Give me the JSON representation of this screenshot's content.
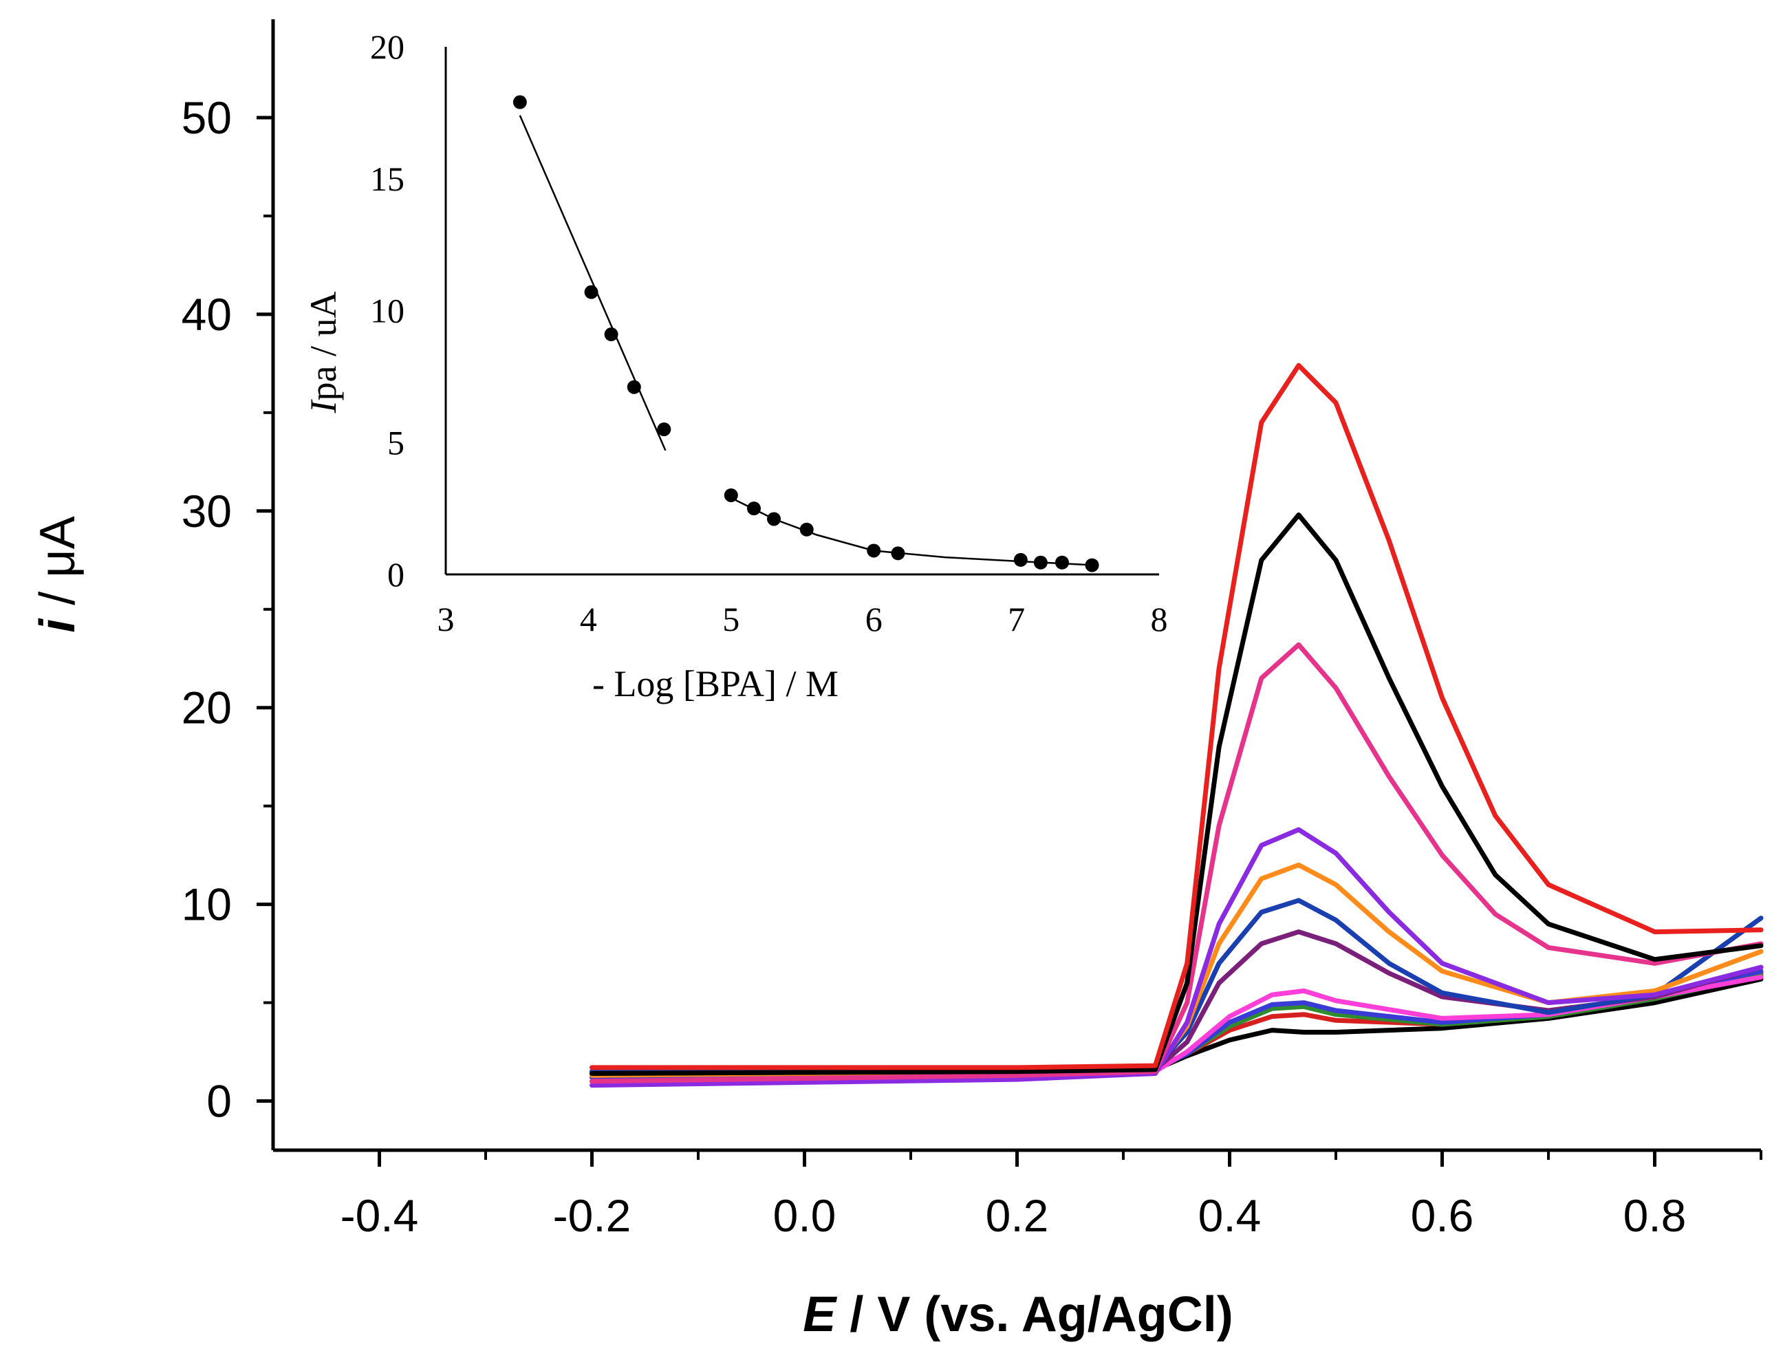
{
  "chart_data": [
    {
      "type": "line",
      "xlabel_italic": "E",
      "xlabel_rest": " / V (vs. Ag/AgCl)",
      "ylabel_italic": "i",
      "ylabel_rest": " / μA",
      "xlim": [
        -0.5,
        0.9
      ],
      "ylim": [
        -2.5,
        55
      ],
      "x_ticks": [
        "-0.4",
        "-0.2",
        "0.0",
        "0.2",
        "0.4",
        "0.6",
        "0.8"
      ],
      "y_ticks": [
        "0",
        "10",
        "20",
        "30",
        "40",
        "50"
      ],
      "series": [
        {
          "color": "#000000",
          "values": [
            [
              -0.2,
              1.4
            ],
            [
              0.2,
              1.5
            ],
            [
              0.33,
              1.6
            ],
            [
              0.36,
              2.3
            ],
            [
              0.4,
              3.1
            ],
            [
              0.44,
              3.6
            ],
            [
              0.47,
              3.5
            ],
            [
              0.5,
              3.5
            ],
            [
              0.6,
              3.7
            ],
            [
              0.7,
              4.2
            ],
            [
              0.8,
              5.0
            ],
            [
              0.9,
              6.2
            ]
          ]
        },
        {
          "color": "#d62020",
          "values": [
            [
              -0.2,
              1.5
            ],
            [
              0.2,
              1.6
            ],
            [
              0.33,
              1.7
            ],
            [
              0.36,
              2.4
            ],
            [
              0.4,
              3.6
            ],
            [
              0.44,
              4.3
            ],
            [
              0.47,
              4.4
            ],
            [
              0.5,
              4.1
            ],
            [
              0.6,
              3.9
            ],
            [
              0.7,
              4.3
            ],
            [
              0.8,
              5.2
            ],
            [
              0.9,
              6.5
            ]
          ]
        },
        {
          "color": "#2e8b2e",
          "values": [
            [
              -0.2,
              1.3
            ],
            [
              0.2,
              1.5
            ],
            [
              0.33,
              1.6
            ],
            [
              0.36,
              2.4
            ],
            [
              0.4,
              3.8
            ],
            [
              0.44,
              4.7
            ],
            [
              0.47,
              4.8
            ],
            [
              0.5,
              4.4
            ],
            [
              0.6,
              3.9
            ],
            [
              0.7,
              4.3
            ],
            [
              0.8,
              5.2
            ],
            [
              0.9,
              6.4
            ]
          ]
        },
        {
          "color": "#3a3ad6",
          "values": [
            [
              -0.2,
              1.2
            ],
            [
              0.2,
              1.4
            ],
            [
              0.33,
              1.6
            ],
            [
              0.36,
              2.4
            ],
            [
              0.4,
              4.0
            ],
            [
              0.44,
              4.9
            ],
            [
              0.47,
              5.0
            ],
            [
              0.5,
              4.6
            ],
            [
              0.6,
              4.0
            ],
            [
              0.7,
              4.4
            ],
            [
              0.8,
              5.4
            ],
            [
              0.9,
              6.6
            ]
          ]
        },
        {
          "color": "#ff3fd8",
          "values": [
            [
              -0.2,
              1.0
            ],
            [
              0.2,
              1.3
            ],
            [
              0.33,
              1.5
            ],
            [
              0.36,
              2.5
            ],
            [
              0.4,
              4.3
            ],
            [
              0.44,
              5.4
            ],
            [
              0.47,
              5.6
            ],
            [
              0.5,
              5.1
            ],
            [
              0.6,
              4.2
            ],
            [
              0.7,
              4.4
            ],
            [
              0.8,
              5.3
            ],
            [
              0.9,
              6.3
            ]
          ]
        },
        {
          "color": "#7a1f7a",
          "values": [
            [
              -0.2,
              1.4
            ],
            [
              0.2,
              1.5
            ],
            [
              0.33,
              1.6
            ],
            [
              0.36,
              3.0
            ],
            [
              0.39,
              6.0
            ],
            [
              0.43,
              8.0
            ],
            [
              0.465,
              8.6
            ],
            [
              0.5,
              8.0
            ],
            [
              0.55,
              6.5
            ],
            [
              0.6,
              5.3
            ],
            [
              0.7,
              4.6
            ],
            [
              0.8,
              5.3
            ],
            [
              0.9,
              6.8
            ]
          ]
        },
        {
          "color": "#1a3fb0",
          "values": [
            [
              -0.2,
              1.5
            ],
            [
              0.2,
              1.6
            ],
            [
              0.33,
              1.7
            ],
            [
              0.36,
              3.5
            ],
            [
              0.39,
              7.0
            ],
            [
              0.43,
              9.6
            ],
            [
              0.465,
              10.2
            ],
            [
              0.5,
              9.2
            ],
            [
              0.55,
              7.0
            ],
            [
              0.6,
              5.5
            ],
            [
              0.7,
              4.5
            ],
            [
              0.8,
              5.4
            ],
            [
              0.9,
              9.3
            ]
          ]
        },
        {
          "color": "#ff8c1a",
          "values": [
            [
              -0.2,
              1.3
            ],
            [
              0.2,
              1.5
            ],
            [
              0.33,
              1.6
            ],
            [
              0.36,
              3.8
            ],
            [
              0.39,
              8.0
            ],
            [
              0.43,
              11.3
            ],
            [
              0.465,
              12.0
            ],
            [
              0.5,
              11.0
            ],
            [
              0.55,
              8.6
            ],
            [
              0.6,
              6.6
            ],
            [
              0.7,
              5.0
            ],
            [
              0.8,
              5.6
            ],
            [
              0.9,
              7.6
            ]
          ]
        },
        {
          "color": "#8a2be2",
          "values": [
            [
              -0.2,
              0.8
            ],
            [
              0.2,
              1.1
            ],
            [
              0.33,
              1.4
            ],
            [
              0.36,
              4.0
            ],
            [
              0.39,
              9.0
            ],
            [
              0.43,
              13.0
            ],
            [
              0.465,
              13.8
            ],
            [
              0.5,
              12.6
            ],
            [
              0.55,
              9.6
            ],
            [
              0.6,
              7.0
            ],
            [
              0.7,
              5.0
            ],
            [
              0.8,
              5.4
            ],
            [
              0.9,
              6.8
            ]
          ]
        },
        {
          "color": "#e6348c",
          "values": [
            [
              -0.2,
              1.0
            ],
            [
              0.2,
              1.3
            ],
            [
              0.33,
              1.5
            ],
            [
              0.36,
              5.0
            ],
            [
              0.39,
              14.0
            ],
            [
              0.43,
              21.5
            ],
            [
              0.465,
              23.2
            ],
            [
              0.5,
              21.0
            ],
            [
              0.55,
              16.5
            ],
            [
              0.6,
              12.5
            ],
            [
              0.65,
              9.5
            ],
            [
              0.7,
              7.8
            ],
            [
              0.8,
              7.0
            ],
            [
              0.9,
              8.0
            ]
          ]
        },
        {
          "color": "#000000",
          "values": [
            [
              -0.2,
              1.4
            ],
            [
              0.2,
              1.5
            ],
            [
              0.33,
              1.6
            ],
            [
              0.36,
              6.0
            ],
            [
              0.39,
              18.0
            ],
            [
              0.43,
              27.5
            ],
            [
              0.465,
              29.8
            ],
            [
              0.5,
              27.5
            ],
            [
              0.55,
              21.5
            ],
            [
              0.6,
              16.0
            ],
            [
              0.65,
              11.5
            ],
            [
              0.7,
              9.0
            ],
            [
              0.8,
              7.2
            ],
            [
              0.9,
              7.9
            ]
          ]
        },
        {
          "color": "#e8201e",
          "values": [
            [
              -0.2,
              1.7
            ],
            [
              0.2,
              1.7
            ],
            [
              0.33,
              1.8
            ],
            [
              0.36,
              7.0
            ],
            [
              0.39,
              22.0
            ],
            [
              0.43,
              34.5
            ],
            [
              0.465,
              37.4
            ],
            [
              0.5,
              35.5
            ],
            [
              0.55,
              28.5
            ],
            [
              0.6,
              20.5
            ],
            [
              0.65,
              14.5
            ],
            [
              0.7,
              11.0
            ],
            [
              0.8,
              8.6
            ],
            [
              0.9,
              8.7
            ]
          ]
        }
      ]
    },
    {
      "type": "scatter",
      "xlabel": "- Log [BPA] / M",
      "ylabel_italic": "I",
      "ylabel_rest": "pa / uA",
      "xlim": [
        3,
        8
      ],
      "ylim": [
        0,
        20
      ],
      "x_ticks": [
        "3",
        "4",
        "5",
        "6",
        "7",
        "8"
      ],
      "y_ticks": [
        "0",
        "5",
        "10",
        "15",
        "20"
      ],
      "points": [
        [
          3.52,
          17.9
        ],
        [
          4.02,
          10.7
        ],
        [
          4.16,
          9.1
        ],
        [
          4.32,
          7.1
        ],
        [
          4.53,
          5.5
        ],
        [
          5.0,
          3.0
        ],
        [
          5.16,
          2.5
        ],
        [
          5.3,
          2.1
        ],
        [
          5.53,
          1.7
        ],
        [
          6.0,
          0.9
        ],
        [
          6.17,
          0.8
        ],
        [
          7.03,
          0.55
        ],
        [
          7.17,
          0.45
        ],
        [
          7.32,
          0.45
        ],
        [
          7.53,
          0.35
        ]
      ],
      "fit_lines": [
        [
          [
            3.52,
            17.4
          ],
          [
            4.54,
            4.7
          ]
        ],
        [
          [
            5.0,
            2.9
          ],
          [
            5.3,
            2.1
          ],
          [
            5.6,
            1.5
          ],
          [
            6.0,
            0.9
          ],
          [
            6.5,
            0.65
          ],
          [
            7.0,
            0.5
          ],
          [
            7.55,
            0.35
          ]
        ]
      ]
    }
  ]
}
